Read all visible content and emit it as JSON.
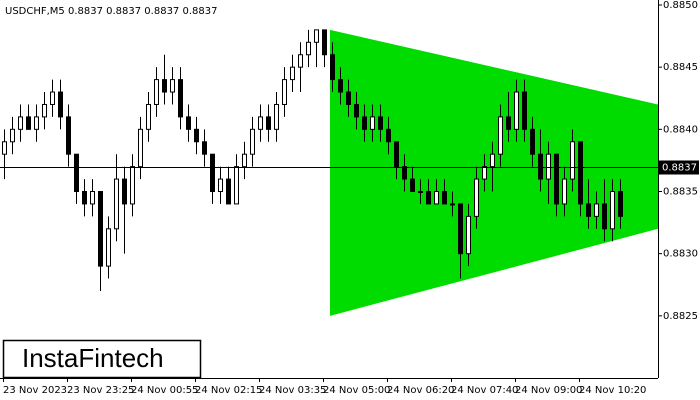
{
  "chart_data": {
    "type": "candlestick",
    "title": "USDCHF,M5  0.8837 0.8837 0.8837 0.8837",
    "categories": [
      "23 Nov 2023",
      "23 Nov 23:25",
      "24 Nov 00:55",
      "24 Nov 02:15",
      "24 Nov 03:35",
      "24 Nov 05:00",
      "24 Nov 06:20",
      "24 Nov 07:40",
      "24 Nov 09:00",
      "24 Nov 10:20"
    ],
    "open": [
      0.8838,
      0.8839,
      0.884,
      0.8841,
      0.884,
      0.8841,
      0.8842,
      0.8843,
      0.8841,
      0.8838,
      0.8835,
      0.8834,
      0.8835,
      0.8829,
      0.8832,
      0.8836,
      0.8834,
      0.8837,
      0.884,
      0.8842,
      0.8844,
      0.8843,
      0.8844,
      0.8841,
      0.884,
      0.8839,
      0.8838,
      0.8835,
      0.8836,
      0.8834,
      0.8837,
      0.8838,
      0.884,
      0.8841,
      0.884,
      0.8842,
      0.8844,
      0.8845,
      0.8846,
      0.8847,
      0.8848,
      0.8846,
      0.8844,
      0.8843,
      0.8842,
      0.8841,
      0.884,
      0.8841,
      0.884,
      0.8839,
      0.8837,
      0.8836,
      0.8835,
      0.8835,
      0.8834,
      0.8835,
      0.8834,
      0.8834,
      0.883,
      0.8833,
      0.8836,
      0.8837,
      0.8838,
      0.8841,
      0.884,
      0.8843,
      0.884,
      0.8838,
      0.8836,
      0.8838,
      0.8834,
      0.8836,
      0.8839,
      0.8834,
      0.8833,
      0.8834,
      0.8832,
      0.8835
    ],
    "high": [
      0.884,
      0.8841,
      0.8842,
      0.8842,
      0.8842,
      0.8843,
      0.8844,
      0.8844,
      0.8842,
      0.8838,
      0.8836,
      0.8836,
      0.8835,
      0.8833,
      0.8838,
      0.8837,
      0.8838,
      0.8841,
      0.8843,
      0.8845,
      0.8846,
      0.8845,
      0.8845,
      0.8842,
      0.8841,
      0.884,
      0.8838,
      0.8837,
      0.8837,
      0.8838,
      0.8839,
      0.8841,
      0.8842,
      0.8842,
      0.8843,
      0.8845,
      0.8846,
      0.8847,
      0.8848,
      0.8848,
      0.8848,
      0.8847,
      0.8845,
      0.8844,
      0.8843,
      0.8842,
      0.8842,
      0.8842,
      0.8841,
      0.8839,
      0.8838,
      0.8837,
      0.8836,
      0.8836,
      0.8836,
      0.8836,
      0.8835,
      0.8834,
      0.8834,
      0.8837,
      0.8838,
      0.8839,
      0.8842,
      0.8843,
      0.8844,
      0.8844,
      0.8841,
      0.884,
      0.8839,
      0.8838,
      0.8837,
      0.884,
      0.8839,
      0.8836,
      0.8835,
      0.8836,
      0.8836,
      0.8836
    ],
    "low": [
      0.8836,
      0.8838,
      0.8839,
      0.884,
      0.8839,
      0.884,
      0.8841,
      0.884,
      0.8837,
      0.8834,
      0.8833,
      0.8833,
      0.8827,
      0.8828,
      0.8831,
      0.883,
      0.8833,
      0.8836,
      0.8839,
      0.8841,
      0.8842,
      0.8842,
      0.884,
      0.8839,
      0.8838,
      0.8837,
      0.8834,
      0.8834,
      0.8834,
      0.8834,
      0.8836,
      0.8837,
      0.8839,
      0.8839,
      0.8839,
      0.8841,
      0.8843,
      0.8843,
      0.8845,
      0.8845,
      0.8845,
      0.8843,
      0.8842,
      0.8841,
      0.884,
      0.8839,
      0.8839,
      0.8839,
      0.8838,
      0.8836,
      0.8835,
      0.8835,
      0.8834,
      0.8834,
      0.8834,
      0.8834,
      0.8833,
      0.8828,
      0.8829,
      0.8832,
      0.8835,
      0.8835,
      0.8837,
      0.8839,
      0.8839,
      0.8839,
      0.8837,
      0.8835,
      0.8834,
      0.8833,
      0.8833,
      0.8835,
      0.8833,
      0.8832,
      0.8832,
      0.8831,
      0.8831,
      0.8832
    ],
    "close": [
      0.8839,
      0.884,
      0.8841,
      0.884,
      0.8841,
      0.8842,
      0.8843,
      0.8841,
      0.8838,
      0.8835,
      0.8834,
      0.8835,
      0.8829,
      0.8832,
      0.8836,
      0.8834,
      0.8837,
      0.884,
      0.8842,
      0.8844,
      0.8843,
      0.8844,
      0.8841,
      0.884,
      0.8839,
      0.8838,
      0.8835,
      0.8836,
      0.8834,
      0.8837,
      0.8838,
      0.884,
      0.8841,
      0.884,
      0.8842,
      0.8844,
      0.8845,
      0.8846,
      0.8847,
      0.8848,
      0.8846,
      0.8844,
      0.8843,
      0.8842,
      0.8841,
      0.884,
      0.8841,
      0.884,
      0.8839,
      0.8837,
      0.8836,
      0.8835,
      0.8835,
      0.8834,
      0.8835,
      0.8834,
      0.8834,
      0.883,
      0.8833,
      0.8836,
      0.8837,
      0.8838,
      0.8841,
      0.884,
      0.8843,
      0.884,
      0.8838,
      0.8836,
      0.8838,
      0.8834,
      0.8836,
      0.8839,
      0.8834,
      0.8833,
      0.8834,
      0.8832,
      0.8835,
      0.8833
    ],
    "ylim": [
      0.882,
      0.885
    ],
    "yticks": [
      {
        "value": 0.885,
        "label": "0.8850"
      },
      0.8845,
      {
        "value": 0.884,
        "label": "0.8840"
      },
      0.8835,
      {
        "value": 0.883,
        "label": "0.8830"
      },
      0.8825
    ],
    "last_price": 0.8837,
    "pattern": {
      "color": "#00dc00",
      "upper": [
        0.8848,
        0.8842
      ],
      "lower": [
        0.8825,
        0.8832
      ]
    },
    "logo": "InstaFintech"
  }
}
